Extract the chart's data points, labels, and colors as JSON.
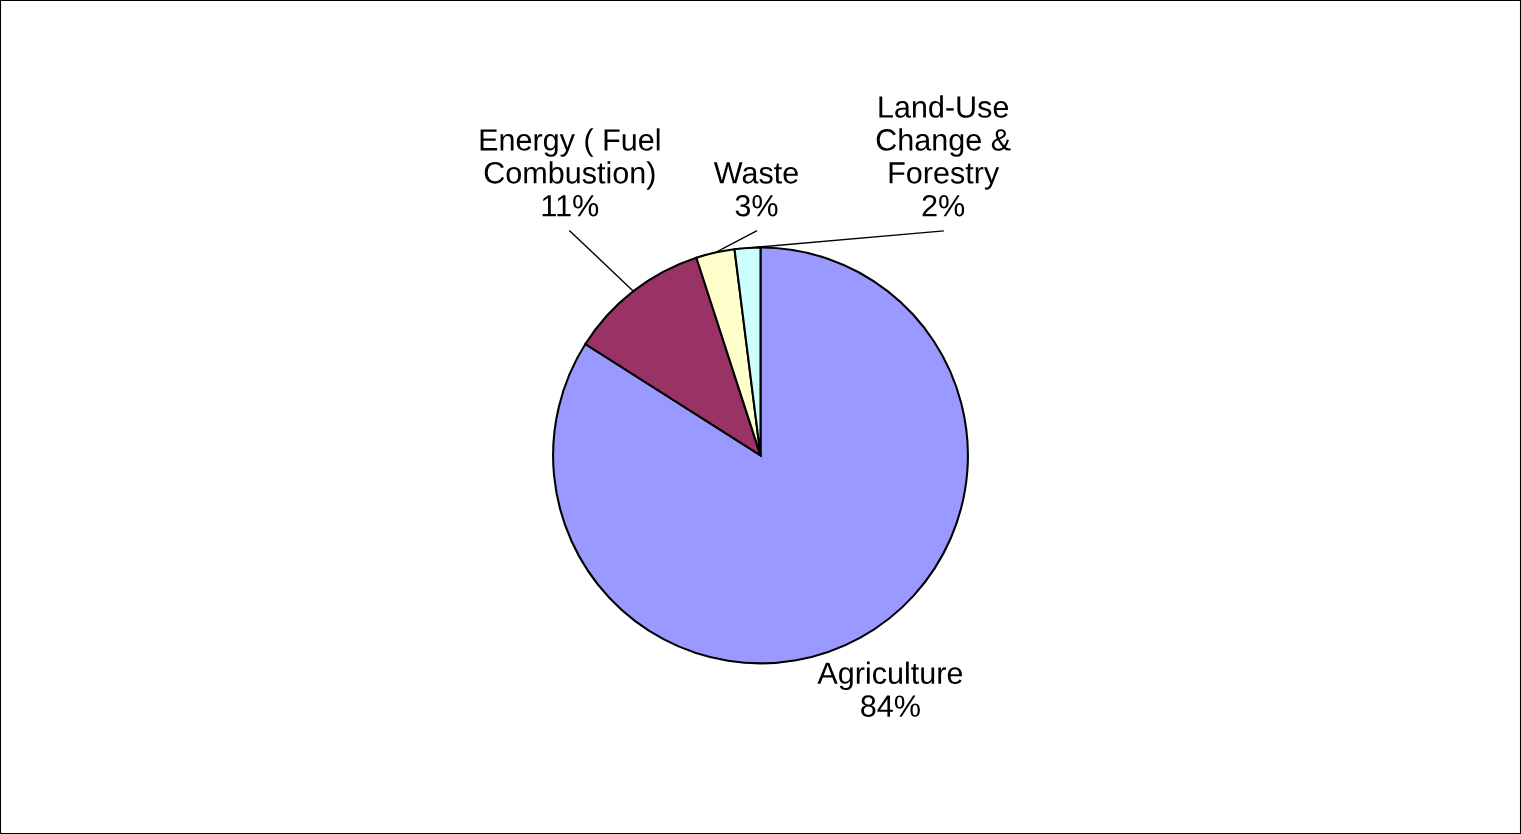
{
  "chart_data": {
    "type": "pie",
    "categories": [
      "Agriculture",
      "Energy ( Fuel\nCombustion)",
      "Waste",
      "Land-Use\nChange &\nForestry"
    ],
    "values": [
      84,
      11,
      3,
      2
    ],
    "value_labels": [
      "84%",
      "11%",
      "3%",
      "2%"
    ],
    "colors": [
      "#9999ff",
      "#993366",
      "#ffffcc",
      "#ccffff"
    ]
  }
}
